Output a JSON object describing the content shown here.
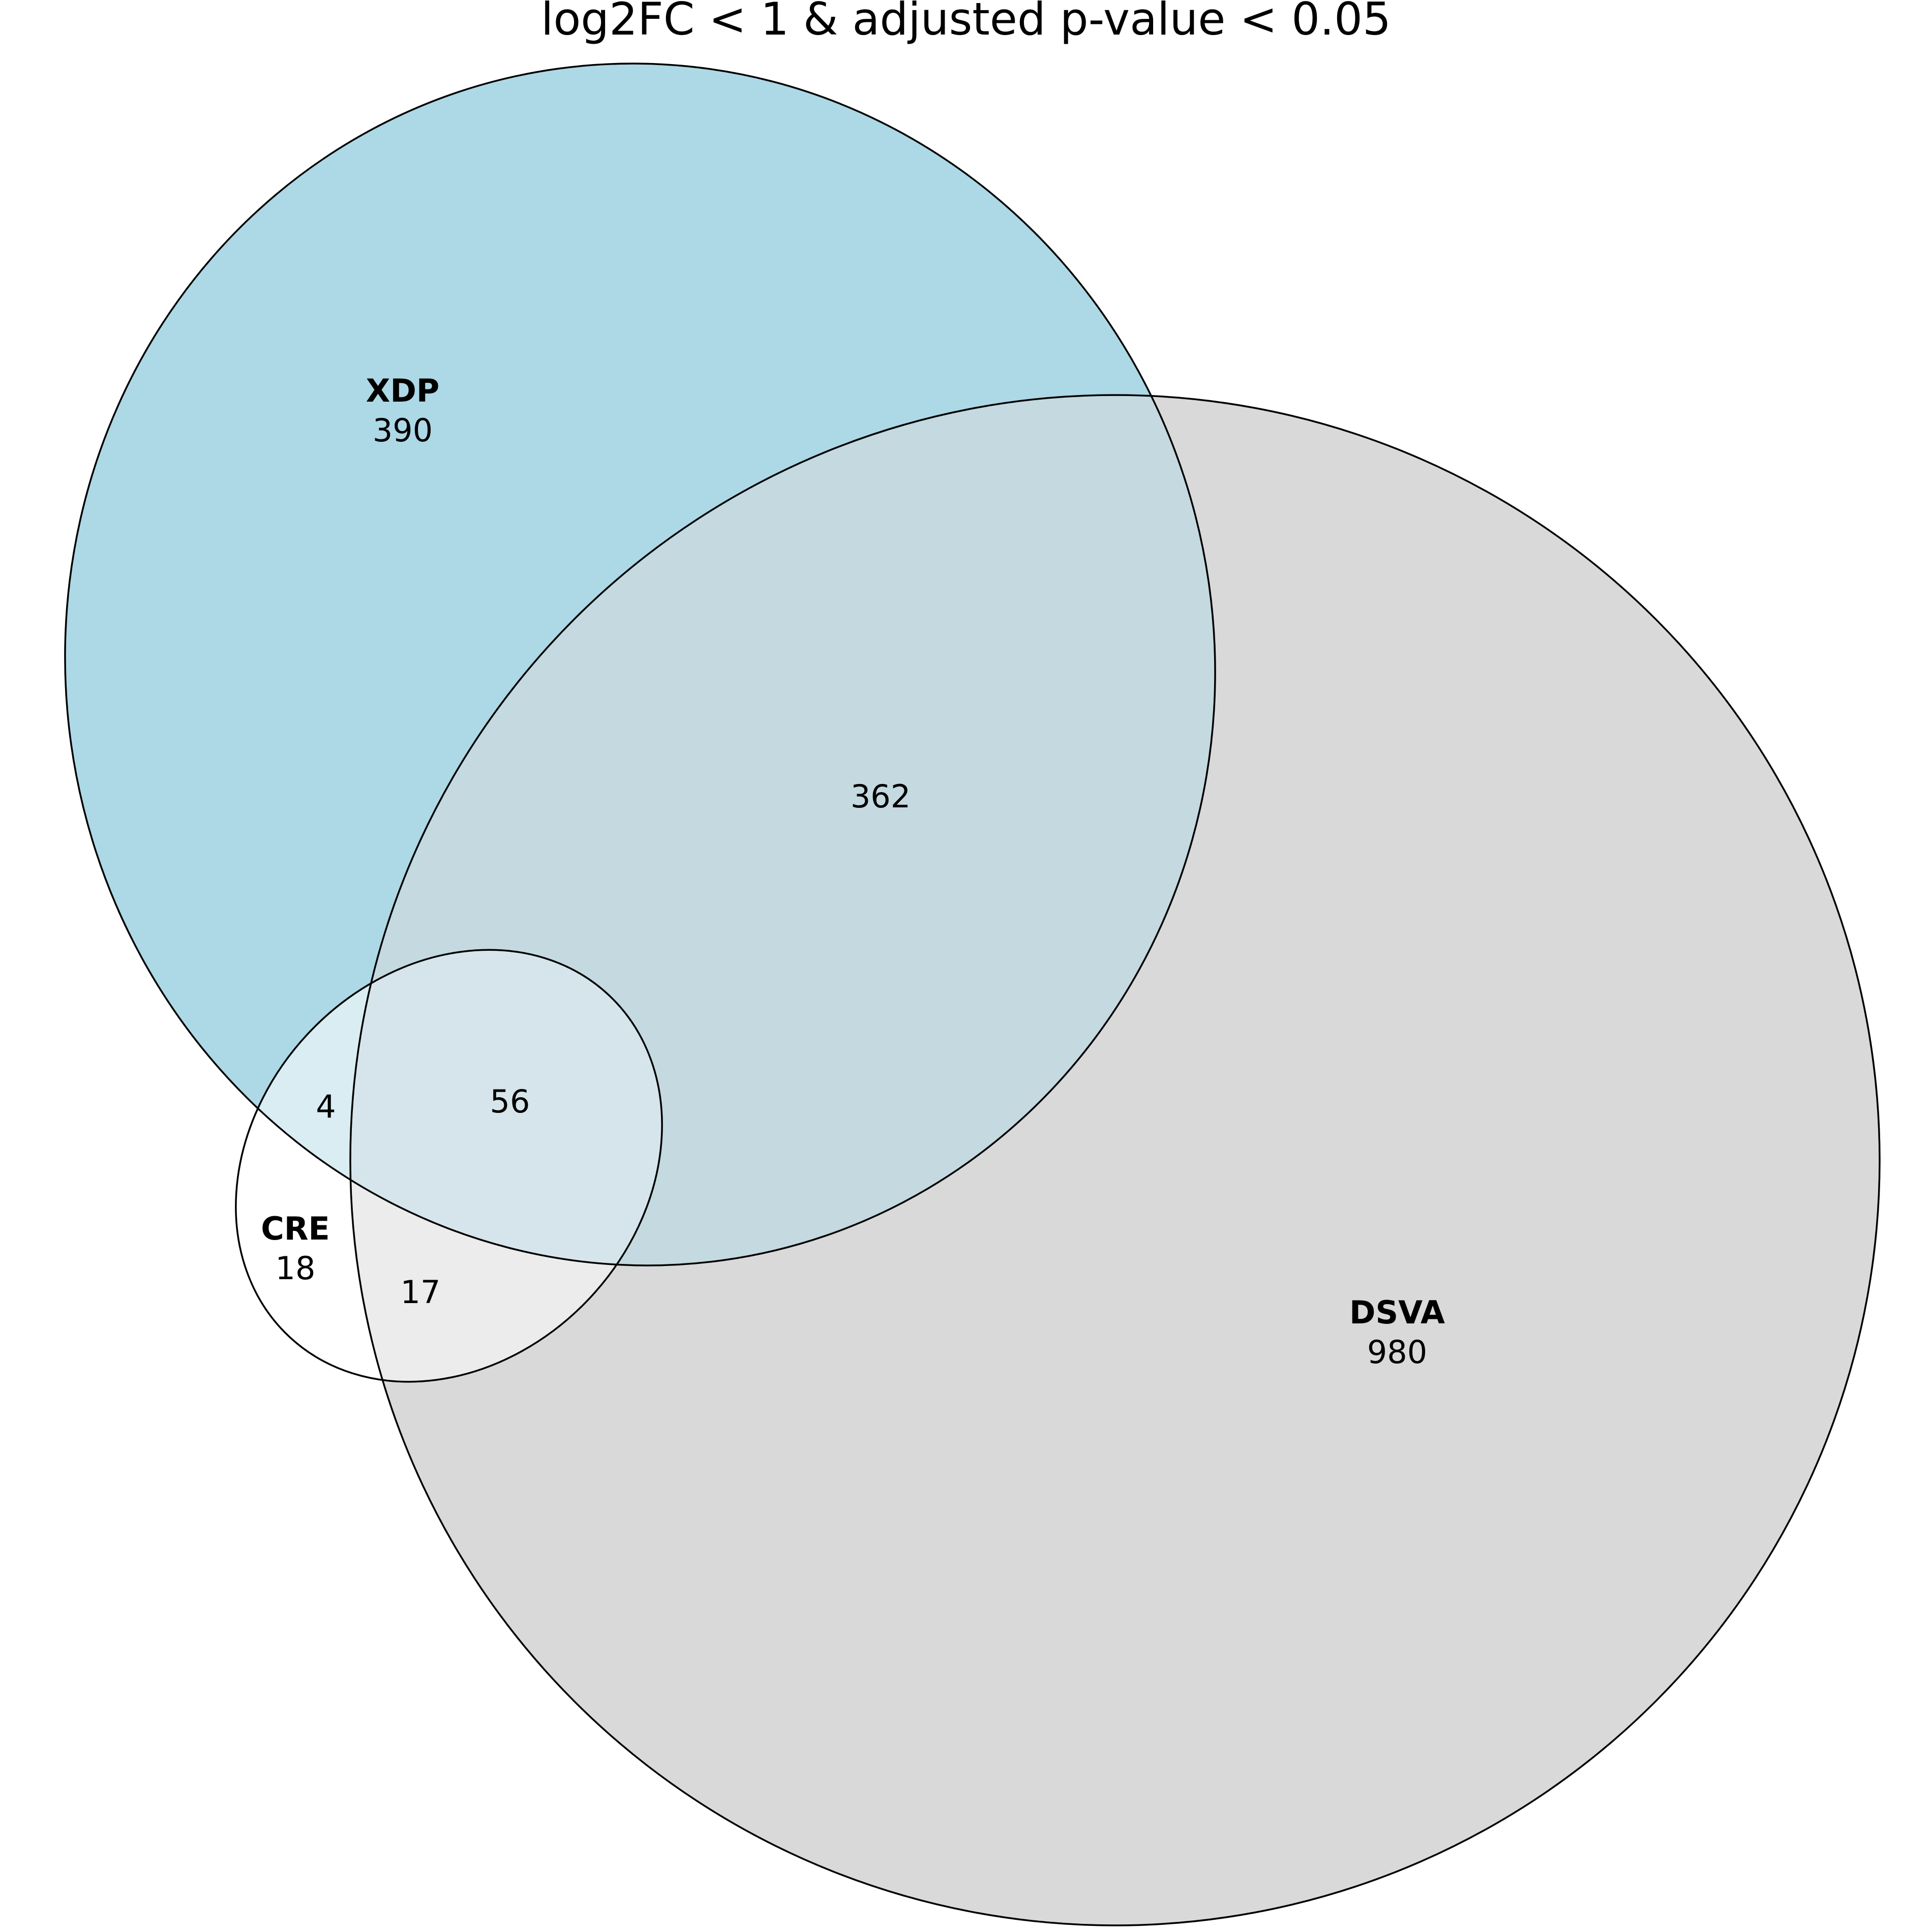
{
  "title": "log2FC < 1 & adjusted p-value < 0.05",
  "colors": {
    "XDP": "#add8e6",
    "DSVA": "#d9d9d9",
    "CRE": "#ffffff",
    "outline": "#000000"
  },
  "sets": [
    {
      "id": "XDP",
      "name": "XDP",
      "count": "390"
    },
    {
      "id": "DSVA",
      "name": "DSVA",
      "count": "980"
    },
    {
      "id": "CRE",
      "name": "CRE",
      "count": "18"
    }
  ],
  "intersections": {
    "XDP_DSVA": "362",
    "XDP_CRE": "4",
    "XDP_DSVA_CRE": "56",
    "DSVA_CRE": "17"
  }
}
